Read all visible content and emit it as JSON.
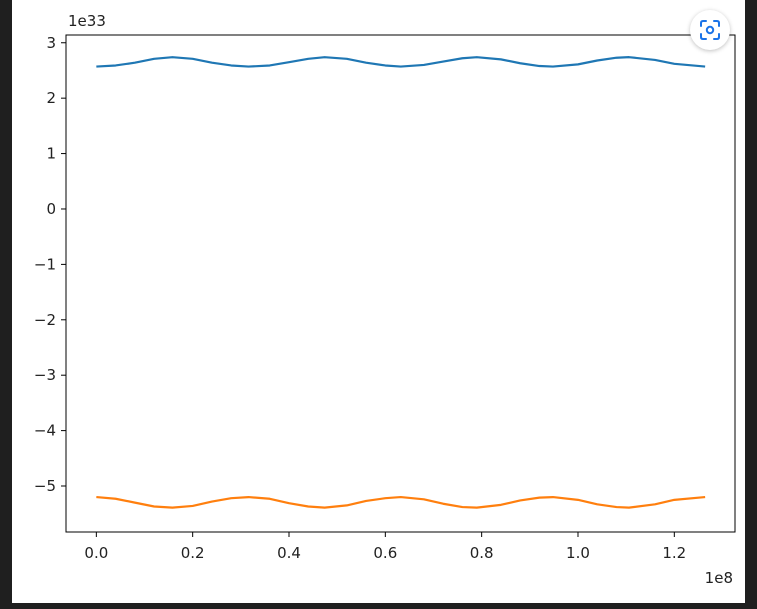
{
  "chart_data": {
    "type": "line",
    "title": "",
    "xlabel": "",
    "ylabel": "",
    "x_offset_label": "1e8",
    "y_offset_label": "1e33",
    "x_ticks": [
      {
        "value": 0.0,
        "label": "0.0"
      },
      {
        "value": 0.2,
        "label": "0.2"
      },
      {
        "value": 0.4,
        "label": "0.4"
      },
      {
        "value": 0.6,
        "label": "0.6"
      },
      {
        "value": 0.8,
        "label": "0.8"
      },
      {
        "value": 1.0,
        "label": "1.0"
      },
      {
        "value": 1.2,
        "label": "1.2"
      }
    ],
    "y_ticks": [
      {
        "value": 3,
        "label": "3"
      },
      {
        "value": 2,
        "label": "2"
      },
      {
        "value": 1,
        "label": "1"
      },
      {
        "value": 0,
        "label": "0"
      },
      {
        "value": -1,
        "label": "−1"
      },
      {
        "value": -2,
        "label": "−2"
      },
      {
        "value": -3,
        "label": "−3"
      },
      {
        "value": -4,
        "label": "−4"
      },
      {
        "value": -5,
        "label": "−5"
      }
    ],
    "xlim": [
      -0.063,
      1.326
    ],
    "ylim": [
      -5.83,
      3.14
    ],
    "grid": false,
    "series": [
      {
        "color": "#1f77b4",
        "x": [
          0.0,
          0.04,
          0.08,
          0.12,
          0.158,
          0.2,
          0.24,
          0.28,
          0.316,
          0.36,
          0.4,
          0.44,
          0.474,
          0.52,
          0.56,
          0.6,
          0.632,
          0.68,
          0.72,
          0.76,
          0.79,
          0.84,
          0.88,
          0.92,
          0.948,
          1.0,
          1.04,
          1.08,
          1.106,
          1.16,
          1.2,
          1.264
        ],
        "y": [
          2.57,
          2.59,
          2.64,
          2.71,
          2.74,
          2.71,
          2.64,
          2.59,
          2.57,
          2.59,
          2.65,
          2.71,
          2.74,
          2.71,
          2.64,
          2.59,
          2.57,
          2.6,
          2.66,
          2.72,
          2.74,
          2.7,
          2.63,
          2.58,
          2.57,
          2.61,
          2.68,
          2.73,
          2.74,
          2.69,
          2.62,
          2.57
        ]
      },
      {
        "color": "#ff7f0e",
        "x": [
          0.0,
          0.04,
          0.08,
          0.12,
          0.158,
          0.2,
          0.24,
          0.28,
          0.316,
          0.36,
          0.4,
          0.44,
          0.474,
          0.52,
          0.56,
          0.6,
          0.632,
          0.68,
          0.72,
          0.76,
          0.79,
          0.84,
          0.88,
          0.92,
          0.948,
          1.0,
          1.04,
          1.08,
          1.106,
          1.16,
          1.2,
          1.264
        ],
        "y": [
          -5.2,
          -5.23,
          -5.3,
          -5.37,
          -5.39,
          -5.36,
          -5.28,
          -5.22,
          -5.2,
          -5.23,
          -5.31,
          -5.37,
          -5.39,
          -5.35,
          -5.27,
          -5.22,
          -5.2,
          -5.24,
          -5.32,
          -5.38,
          -5.39,
          -5.34,
          -5.26,
          -5.21,
          -5.2,
          -5.25,
          -5.33,
          -5.38,
          -5.39,
          -5.33,
          -5.25,
          -5.2
        ]
      }
    ]
  },
  "lens_button": {
    "icon": "google-lens-icon"
  }
}
